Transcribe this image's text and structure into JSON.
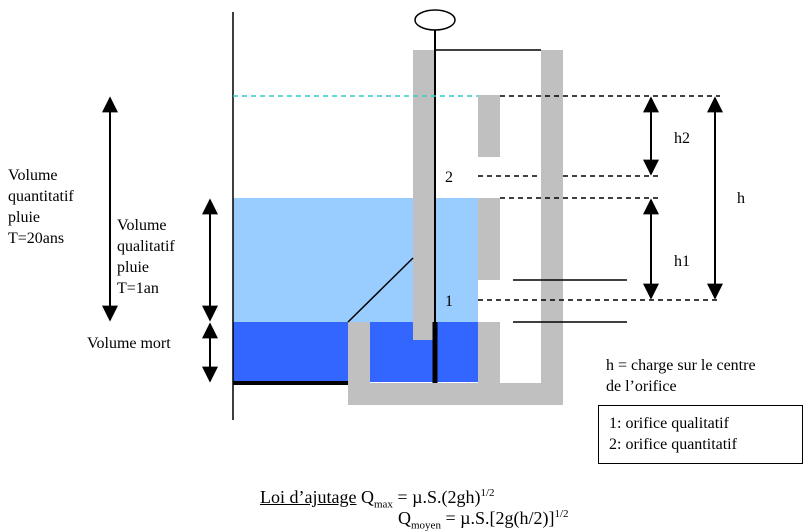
{
  "labels": {
    "volume_quantitatif": [
      "Volume",
      "quantitatif",
      "pluie",
      "T=20ans"
    ],
    "volume_qualitatif": [
      "Volume",
      "qualitatif",
      "pluie",
      "T=1an"
    ],
    "volume_mort": "Volume mort",
    "orifice_1": "1",
    "orifice_2": "2",
    "h": "h",
    "h1": "h1",
    "h2": "h2"
  },
  "note": [
    "h = charge sur le centre",
    "de l’orifice"
  ],
  "legend": {
    "item1": "1: orifice qualitatif",
    "item2": "2: orifice quantitatif"
  },
  "formula": {
    "title": "Loi d’ajutage",
    "qmax_sym": "Q",
    "qmax_sub": "max",
    "qmax_rhs": " = µ.S.(2gh)",
    "qmax_exp": "1/2",
    "qmoy_sym": "Q",
    "qmoy_sub": "moyen",
    "qmoy_rhs": " = µ.S.[2g(h/2)]",
    "qmoy_exp": "1/2"
  },
  "colors": {
    "dead_water": "#3366ff",
    "quality_water": "#99ccff",
    "max_level_line": "#33cccc",
    "concrete": "#c0c0c0",
    "ink": "#000000"
  }
}
